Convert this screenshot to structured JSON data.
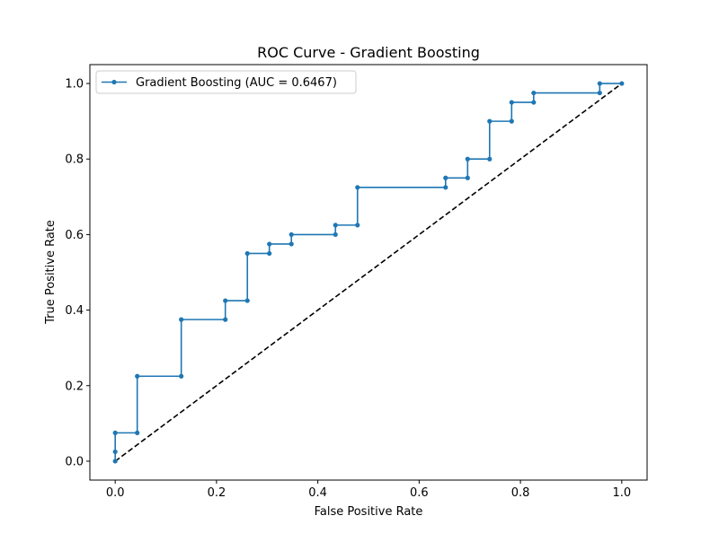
{
  "chart_data": {
    "type": "line",
    "title": "ROC Curve - Gradient Boosting",
    "xlabel": "False Positive Rate",
    "ylabel": "True Positive Rate",
    "xlim": [
      -0.05,
      1.05
    ],
    "ylim": [
      -0.05,
      1.05
    ],
    "x_ticks": [
      0.0,
      0.2,
      0.4,
      0.6,
      0.8,
      1.0
    ],
    "y_ticks": [
      0.0,
      0.2,
      0.4,
      0.6,
      0.8,
      1.0
    ],
    "x_tick_labels": [
      "0.0",
      "0.2",
      "0.4",
      "0.6",
      "0.8",
      "1.0"
    ],
    "y_tick_labels": [
      "0.0",
      "0.2",
      "0.4",
      "0.6",
      "0.8",
      "1.0"
    ],
    "grid": false,
    "legend_placement": "top-left",
    "series": [
      {
        "name": "Gradient Boosting (AUC = 0.6467)",
        "color": "#1f77b4",
        "marker": "circle",
        "x": [
          0.0,
          0.0,
          0.0,
          0.0435,
          0.0435,
          0.1304,
          0.1304,
          0.2174,
          0.2174,
          0.2609,
          0.2609,
          0.3043,
          0.3043,
          0.3478,
          0.3478,
          0.4348,
          0.4348,
          0.4783,
          0.4783,
          0.6522,
          0.6522,
          0.6957,
          0.6957,
          0.7391,
          0.7391,
          0.7826,
          0.7826,
          0.8261,
          0.8261,
          0.9565,
          0.9565,
          1.0
        ],
        "y": [
          0.0,
          0.025,
          0.075,
          0.075,
          0.225,
          0.225,
          0.375,
          0.375,
          0.425,
          0.425,
          0.55,
          0.55,
          0.575,
          0.575,
          0.6,
          0.6,
          0.625,
          0.625,
          0.725,
          0.725,
          0.75,
          0.75,
          0.8,
          0.8,
          0.9,
          0.9,
          0.95,
          0.95,
          0.975,
          0.975,
          1.0,
          1.0
        ]
      },
      {
        "name": "",
        "color": "#000000",
        "line_style": "dashed",
        "x": [
          0.0,
          1.0
        ],
        "y": [
          0.0,
          1.0
        ]
      }
    ]
  }
}
